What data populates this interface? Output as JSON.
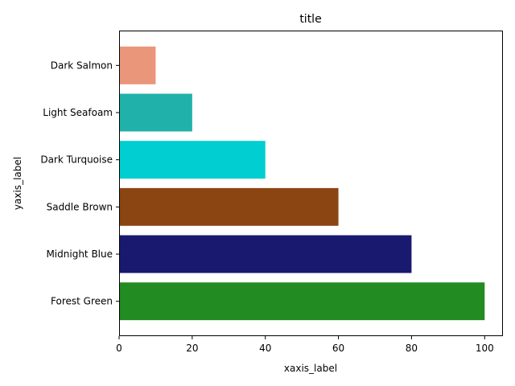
{
  "chart_data": {
    "type": "bar",
    "orientation": "horizontal",
    "title": "title",
    "xlabel": "xaxis_label",
    "ylabel": "yaxis_label",
    "xlim": [
      0,
      105
    ],
    "x_ticks": [
      0,
      20,
      40,
      60,
      80,
      100
    ],
    "grid": false,
    "categories": [
      "Forest Green",
      "Midnight Blue",
      "Saddle Brown",
      "Dark Turquoise",
      "Light Seafoam",
      "Dark Salmon"
    ],
    "values": [
      100,
      80,
      60,
      40,
      20,
      10
    ],
    "colors": [
      "#228b22",
      "#191970",
      "#8b4513",
      "#00ced1",
      "#20b2aa",
      "#e9967a"
    ]
  }
}
